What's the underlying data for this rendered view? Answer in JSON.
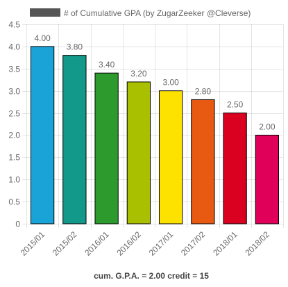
{
  "chart_data": {
    "type": "bar",
    "legend_label": "# of Cumulative GPA (by ZugarZeeker @Cleverse)",
    "legend_swatch_color": "#555555",
    "legend_position": "top",
    "categories": [
      "2015/01",
      "2015/02",
      "2016/01",
      "2016/02",
      "2017/01",
      "2017/02",
      "2018/01",
      "2018/02"
    ],
    "values": [
      4.0,
      3.8,
      3.4,
      3.2,
      3.0,
      2.8,
      2.5,
      2.0
    ],
    "data_labels": [
      "4.00",
      "3.80",
      "3.40",
      "3.20",
      "3.00",
      "2.80",
      "2.50",
      "2.00"
    ],
    "colors": [
      "#1aa3d6",
      "#13998a",
      "#2d9a2d",
      "#a8c000",
      "#fde200",
      "#e85a12",
      "#d90020",
      "#e0005a"
    ],
    "ylim": [
      0,
      4.5
    ],
    "yticks": [
      "0",
      "0.5",
      "1.0",
      "1.5",
      "2.0",
      "2.5",
      "3.0",
      "3.5",
      "4.0",
      "4.5"
    ],
    "ytick_values": [
      0,
      0.5,
      1.0,
      1.5,
      2.0,
      2.5,
      3.0,
      3.5,
      4.0,
      4.5
    ],
    "grid": true
  },
  "footer": {
    "text": "cum. G.P.A. = 2.00 credit = 15"
  }
}
